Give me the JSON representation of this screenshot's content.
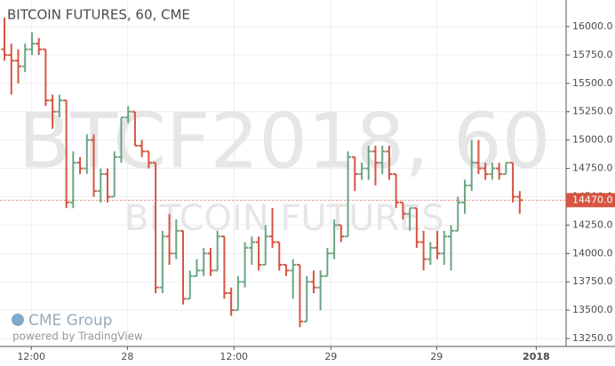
{
  "chart_data": {
    "type": "ohlc",
    "title": "BITCOIN FUTURES, 60, CME",
    "watermark": "BTCF2018, 60",
    "watermark_subtitle": "BITCOIN FUTURES",
    "logo": "CME Group",
    "credit": "powered by TradingView",
    "up_color": "#6ba583",
    "down_color": "#d75442",
    "grid": true,
    "ylim": [
      13180,
      16235
    ],
    "yticks": [
      {
        "value": 13250,
        "label": "13250.0"
      },
      {
        "value": 13500,
        "label": "13500.0"
      },
      {
        "value": 13750,
        "label": "13750.0"
      },
      {
        "value": 14000,
        "label": "14000.0"
      },
      {
        "value": 14250,
        "label": "14250.0"
      },
      {
        "value": 14500,
        "label": "14500.0"
      },
      {
        "value": 14750,
        "label": "14750.0"
      },
      {
        "value": 15000,
        "label": "15000.0"
      },
      {
        "value": 15250,
        "label": "15250.0"
      },
      {
        "value": 15500,
        "label": "15500.0"
      },
      {
        "value": 15750,
        "label": "15750.0"
      },
      {
        "value": 16000,
        "label": "16000.0"
      }
    ],
    "xlim": [
      -0.65,
      81.75
    ],
    "xticks": [
      {
        "value": 3.9,
        "label": "12:00"
      },
      {
        "value": 17.9,
        "label": "28"
      },
      {
        "value": 33.4,
        "label": "12:00"
      },
      {
        "value": 47.5,
        "label": "29"
      },
      {
        "value": 62.9,
        "label": "29"
      },
      {
        "value": 77.4,
        "label": "2018"
      }
    ],
    "last_price": {
      "value": 14470,
      "label": "14470.0"
    },
    "open": [
      15800,
      15750,
      15700,
      15650,
      15800,
      15850,
      15800,
      15350,
      15250,
      15350,
      14450,
      14800,
      14750,
      15000,
      14550,
      14700,
      14500,
      14850,
      15200,
      15250,
      14950,
      14900,
      14800,
      13700,
      14150,
      14000,
      14200,
      13600,
      13800,
      13850,
      14000,
      13850,
      14150,
      13650,
      13500,
      13750,
      14050,
      14100,
      13900,
      14150,
      14100,
      13900,
      13850,
      13900,
      13400,
      13750,
      13700,
      13800,
      14000,
      14250,
      14150,
      14850,
      14700,
      14750,
      14900,
      14800,
      14900,
      14700,
      14450,
      14350,
      14400,
      14100,
      13950,
      14050,
      14000,
      14150,
      14200,
      14450,
      14600,
      14800,
      14750,
      14700,
      14750,
      14700,
      14800,
      14500
    ],
    "high": [
      16080,
      15850,
      15800,
      15850,
      15950,
      15900,
      15800,
      15400,
      15400,
      15350,
      14900,
      14850,
      15050,
      15050,
      14750,
      14750,
      14900,
      15200,
      15300,
      15250,
      15000,
      14900,
      14800,
      14200,
      14350,
      14300,
      14200,
      13850,
      13950,
      14050,
      14050,
      14200,
      14150,
      13700,
      13800,
      14100,
      14150,
      14150,
      14250,
      14400,
      14100,
      13900,
      13950,
      13900,
      13800,
      13850,
      13850,
      14050,
      14300,
      14250,
      14900,
      14850,
      14800,
      14950,
      14950,
      14950,
      14950,
      14700,
      14450,
      14400,
      14400,
      14200,
      14100,
      14200,
      14200,
      14250,
      14500,
      14650,
      15000,
      15000,
      14800,
      14800,
      14800,
      14800,
      14800,
      14550
    ],
    "low": [
      15700,
      15400,
      15500,
      15600,
      15750,
      15750,
      15300,
      15100,
      15200,
      14400,
      14400,
      14700,
      14700,
      14500,
      14450,
      14450,
      14500,
      14800,
      15150,
      14950,
      14850,
      14750,
      13650,
      13650,
      13900,
      13950,
      13550,
      13600,
      13800,
      13800,
      13800,
      13850,
      13600,
      13450,
      13500,
      13700,
      13900,
      13850,
      13900,
      14050,
      13850,
      13800,
      13600,
      13350,
      13400,
      13650,
      13500,
      13800,
      13950,
      14100,
      14150,
      14550,
      14650,
      14650,
      14600,
      14700,
      14650,
      14400,
      14300,
      14200,
      14050,
      13850,
      13900,
      13950,
      13900,
      13850,
      14200,
      14350,
      14550,
      14700,
      14650,
      14650,
      14650,
      14700,
      14450,
      14350
    ],
    "close": [
      15750,
      15700,
      15650,
      15800,
      15850,
      15800,
      15350,
      15250,
      15350,
      14450,
      14800,
      14750,
      15000,
      14550,
      14700,
      14500,
      14850,
      15200,
      15250,
      14950,
      14900,
      14800,
      13700,
      14150,
      14000,
      14200,
      13600,
      13800,
      13850,
      14000,
      13850,
      14150,
      13650,
      13500,
      13750,
      14050,
      14100,
      13900,
      14150,
      14100,
      13900,
      13850,
      13900,
      13400,
      13750,
      13700,
      13800,
      14000,
      14250,
      14150,
      14850,
      14700,
      14750,
      14900,
      14800,
      14900,
      14700,
      14450,
      14350,
      14400,
      14100,
      13950,
      14050,
      14000,
      14150,
      14200,
      14450,
      14600,
      14800,
      14750,
      14700,
      14750,
      14700,
      14800,
      14500,
      14470
    ]
  }
}
